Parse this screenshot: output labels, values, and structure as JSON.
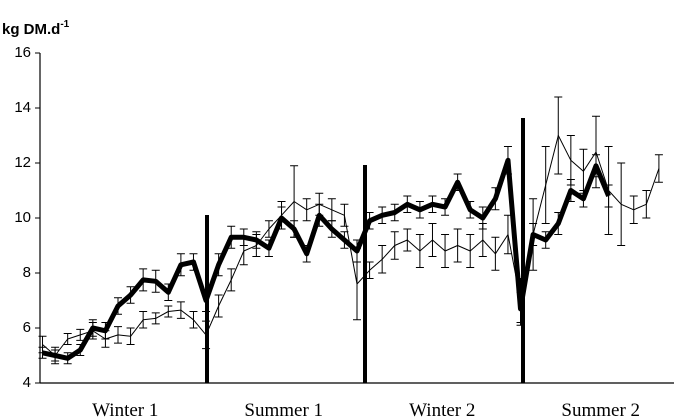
{
  "chart_data": {
    "type": "line",
    "ylabel": "kg DM.d",
    "ylabel_superscript": "-1",
    "periods": [
      "Winter 1",
      "Summer 1",
      "Winter 2",
      "Summer 2"
    ],
    "x": [
      1,
      2,
      3,
      4,
      5,
      6,
      7,
      8,
      9,
      10,
      11,
      12,
      13,
      14,
      15,
      16,
      17,
      18,
      19,
      20,
      21,
      22,
      23,
      24,
      25,
      26,
      27,
      28,
      29,
      30,
      31,
      32,
      33,
      34,
      35,
      36,
      37,
      38,
      39,
      40,
      41,
      42,
      43,
      44,
      45,
      46,
      47,
      48,
      49,
      50
    ],
    "xlim": [
      0.8,
      51.2
    ],
    "ylim": [
      4,
      16
    ],
    "yticks": [
      4,
      6,
      8,
      10,
      12,
      14,
      16
    ],
    "series": [
      {
        "color": "#000000",
        "width": 5,
        "values": [
          5.1,
          5.0,
          4.9,
          5.2,
          6.0,
          5.9,
          6.8,
          7.2,
          7.75,
          7.7,
          7.3,
          8.3,
          8.4,
          7.0,
          8.3,
          9.3,
          9.3,
          9.2,
          8.9,
          10.0,
          9.6,
          8.7,
          10.1,
          9.6,
          9.2,
          8.8,
          9.9,
          10.1,
          10.2,
          10.5,
          10.3,
          10.5,
          10.4,
          11.3,
          10.3,
          10.0,
          10.7,
          12.1,
          6.7,
          9.4,
          9.2,
          9.8,
          11.0,
          10.7,
          11.9,
          10.8,
          null,
          null,
          null,
          null
        ],
        "errors": [
          0.2,
          0.2,
          0.2,
          0.2,
          0.3,
          0.3,
          0.3,
          0.3,
          0.4,
          0.4,
          0.3,
          0.4,
          0.3,
          0.4,
          0.4,
          0.4,
          0.3,
          0.3,
          0.3,
          0.4,
          0.3,
          0.3,
          0.4,
          0.3,
          0.3,
          0.4,
          0.3,
          0.3,
          0.3,
          0.3,
          0.3,
          0.3,
          0.3,
          0.3,
          0.3,
          0.4,
          0.4,
          0.5,
          0.6,
          0.4,
          0.3,
          0.4,
          0.4,
          0.3,
          0.4,
          0.4,
          null,
          null,
          null,
          null
        ]
      },
      {
        "color": "#000000",
        "width": 1,
        "values": [
          5.4,
          5.0,
          5.6,
          5.75,
          5.9,
          5.6,
          5.75,
          5.7,
          6.3,
          6.35,
          6.6,
          6.65,
          6.3,
          5.75,
          6.8,
          7.75,
          8.8,
          9.0,
          9.6,
          10.1,
          10.6,
          10.3,
          10.5,
          10.3,
          10.1,
          7.6,
          8.1,
          8.5,
          9.0,
          9.2,
          8.8,
          9.2,
          8.8,
          9.0,
          8.8,
          9.2,
          8.7,
          9.4,
          7.0,
          9.4,
          11.2,
          13.0,
          12.1,
          11.7,
          12.4,
          11.0,
          10.5,
          10.3,
          10.5,
          11.8
        ],
        "errors": [
          0.3,
          0.3,
          0.2,
          0.2,
          0.3,
          0.3,
          0.3,
          0.3,
          0.3,
          0.2,
          0.2,
          0.3,
          0.3,
          0.5,
          0.4,
          0.4,
          0.5,
          0.4,
          0.3,
          0.5,
          1.3,
          0.4,
          0.4,
          0.4,
          0.4,
          1.3,
          0.3,
          0.5,
          0.5,
          0.4,
          0.6,
          0.6,
          0.6,
          0.6,
          0.6,
          0.6,
          0.6,
          0.7,
          0.8,
          1.3,
          1.4,
          1.4,
          0.9,
          0.8,
          1.3,
          1.6,
          1.5,
          0.5,
          0.5,
          0.5
        ]
      }
    ]
  }
}
